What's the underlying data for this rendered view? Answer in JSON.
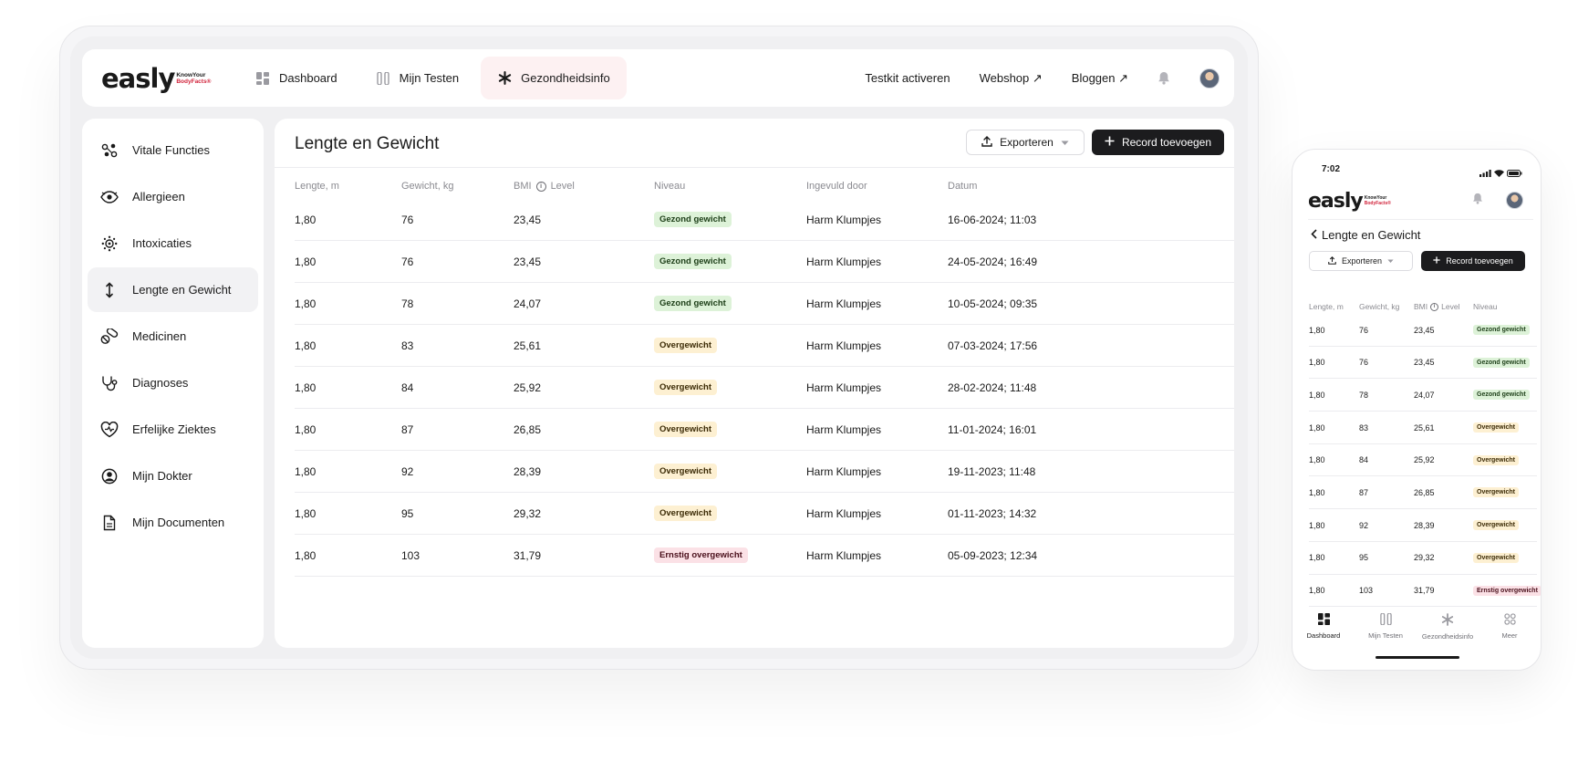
{
  "brand": {
    "word": "easly",
    "tag_line1": "KnowYour",
    "tag_line2": "BodyFacts®",
    "accent": "#d1233b"
  },
  "topnav": {
    "items": [
      {
        "label": "Dashboard",
        "icon": "dashboard-icon"
      },
      {
        "label": "Mijn Testen",
        "icon": "test-tubes-icon"
      },
      {
        "label": "Gezondheidsinfo",
        "icon": "asterisk-icon",
        "active": true
      }
    ],
    "right": {
      "activate": "Testkit activeren",
      "webshop": "Webshop ↗",
      "blog": "Bloggen ↗"
    }
  },
  "sidebar": {
    "items": [
      {
        "label": "Vitale Functies",
        "icon": "vitals-icon"
      },
      {
        "label": "Allergieen",
        "icon": "eye-icon"
      },
      {
        "label": "Intoxicaties",
        "icon": "virus-icon"
      },
      {
        "label": "Lengte en Gewicht",
        "icon": "height-arrow-icon",
        "active": true
      },
      {
        "label": "Medicinen",
        "icon": "pills-icon"
      },
      {
        "label": "Diagnoses",
        "icon": "stethoscope-icon"
      },
      {
        "label": "Erfelijke Ziektes",
        "icon": "heart-icon"
      },
      {
        "label": "Mijn Dokter",
        "icon": "user-circle-icon"
      },
      {
        "label": "Mijn Documenten",
        "icon": "document-icon"
      }
    ]
  },
  "main": {
    "title": "Lengte en Gewicht",
    "export_label": "Exporteren",
    "add_label": "Record toevoegen",
    "columns": {
      "length": "Lengte, m",
      "weight": "Gewicht, kg",
      "bmi": "BMI",
      "level": "Level",
      "niveau": "Niveau",
      "by": "Ingevuld door",
      "date": "Datum"
    },
    "rows": [
      {
        "length": "1,80",
        "weight": "76",
        "bmi": "23,45",
        "niveau": "Gezond gewicht",
        "status": "green",
        "by": "Harm Klumpjes",
        "date": "16-06-2024; 11:03"
      },
      {
        "length": "1,80",
        "weight": "76",
        "bmi": "23,45",
        "niveau": "Gezond gewicht",
        "status": "green",
        "by": "Harm Klumpjes",
        "date": "24-05-2024; 16:49"
      },
      {
        "length": "1,80",
        "weight": "78",
        "bmi": "24,07",
        "niveau": "Gezond gewicht",
        "status": "green",
        "by": "Harm Klumpjes",
        "date": "10-05-2024; 09:35"
      },
      {
        "length": "1,80",
        "weight": "83",
        "bmi": "25,61",
        "niveau": "Overgewicht",
        "status": "yellow",
        "by": "Harm Klumpjes",
        "date": "07-03-2024; 17:56"
      },
      {
        "length": "1,80",
        "weight": "84",
        "bmi": "25,92",
        "niveau": "Overgewicht",
        "status": "yellow",
        "by": "Harm Klumpjes",
        "date": "28-02-2024; 11:48"
      },
      {
        "length": "1,80",
        "weight": "87",
        "bmi": "26,85",
        "niveau": "Overgewicht",
        "status": "yellow",
        "by": "Harm Klumpjes",
        "date": "11-01-2024; 16:01"
      },
      {
        "length": "1,80",
        "weight": "92",
        "bmi": "28,39",
        "niveau": "Overgewicht",
        "status": "yellow",
        "by": "Harm Klumpjes",
        "date": "19-11-2023; 11:48"
      },
      {
        "length": "1,80",
        "weight": "95",
        "bmi": "29,32",
        "niveau": "Overgewicht",
        "status": "yellow",
        "by": "Harm Klumpjes",
        "date": "01-11-2023; 14:32"
      },
      {
        "length": "1,80",
        "weight": "103",
        "bmi": "31,79",
        "niveau": "Ernstig overgewicht",
        "status": "red",
        "by": "Harm Klumpjes",
        "date": "05-09-2023; 12:34"
      }
    ]
  },
  "phone": {
    "time": "7:02",
    "title": "Lengte en Gewicht",
    "export_label": "Exporteren",
    "add_label": "Record toevoegen",
    "columns": {
      "length": "Lengte, m",
      "weight": "Gewicht, kg",
      "bmi": "BMI",
      "level": "Level",
      "niveau": "Niveau"
    },
    "rows": [
      {
        "length": "1,80",
        "weight": "76",
        "bmi": "23,45",
        "niveau": "Gezond gewicht",
        "status": "green"
      },
      {
        "length": "1,80",
        "weight": "76",
        "bmi": "23,45",
        "niveau": "Gezond gewicht",
        "status": "green"
      },
      {
        "length": "1,80",
        "weight": "78",
        "bmi": "24,07",
        "niveau": "Gezond gewicht",
        "status": "green"
      },
      {
        "length": "1,80",
        "weight": "83",
        "bmi": "25,61",
        "niveau": "Overgewicht",
        "status": "yellow"
      },
      {
        "length": "1,80",
        "weight": "84",
        "bmi": "25,92",
        "niveau": "Overgewicht",
        "status": "yellow"
      },
      {
        "length": "1,80",
        "weight": "87",
        "bmi": "26,85",
        "niveau": "Overgewicht",
        "status": "yellow"
      },
      {
        "length": "1,80",
        "weight": "92",
        "bmi": "28,39",
        "niveau": "Overgewicht",
        "status": "yellow"
      },
      {
        "length": "1,80",
        "weight": "95",
        "bmi": "29,32",
        "niveau": "Overgewicht",
        "status": "yellow"
      },
      {
        "length": "1,80",
        "weight": "103",
        "bmi": "31,79",
        "niveau": "Ernstig overgewicht",
        "status": "red"
      }
    ],
    "tabs": [
      {
        "label": "Dashboard",
        "icon": "dashboard-icon",
        "active": true
      },
      {
        "label": "Mijn Testen",
        "icon": "test-tubes-icon"
      },
      {
        "label": "Gezondheidsinfo",
        "icon": "asterisk-icon"
      },
      {
        "label": "Meer",
        "icon": "more-grid-icon"
      }
    ]
  }
}
